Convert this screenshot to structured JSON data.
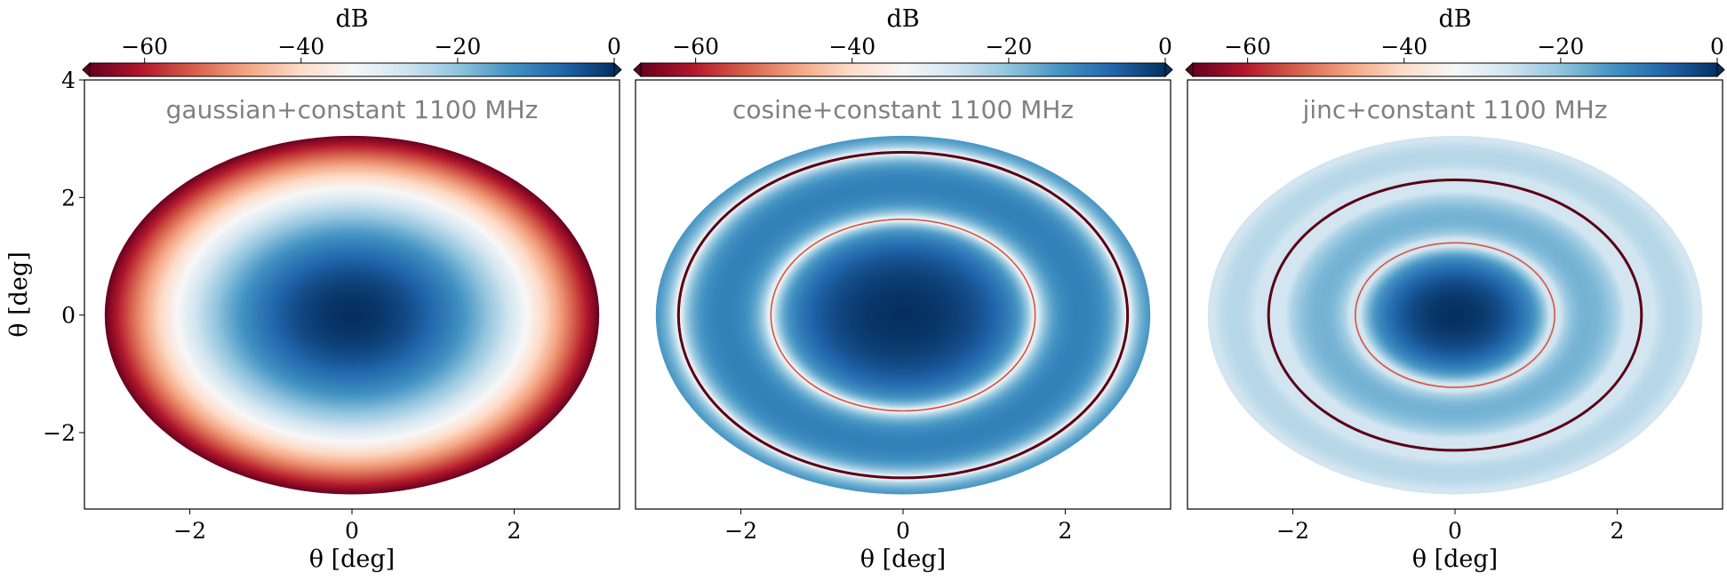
{
  "chart_data": [
    {
      "type": "heatmap",
      "title": "gaussian+constant 1100 MHz",
      "profile": "gaussian",
      "xlabel": "θ [deg]",
      "ylabel": "θ [deg]",
      "xlim": [
        -3.3,
        3.3
      ],
      "ylim": [
        -3.3,
        4
      ],
      "xticks": [
        -2,
        0,
        2
      ],
      "yticks": [
        -2,
        0,
        2,
        4
      ],
      "colorbar": {
        "label": "dB",
        "ticks": [
          -60,
          -40,
          -20,
          0
        ],
        "range": [
          -67,
          0
        ],
        "colormap": "RdBu",
        "position": "top"
      },
      "radius_deg": 3.05,
      "rings_deg": []
    },
    {
      "type": "heatmap",
      "title": "cosine+constant 1100 MHz",
      "profile": "cosine",
      "xlabel": "θ [deg]",
      "ylabel": "",
      "xlim": [
        -3.3,
        3.3
      ],
      "ylim": [
        -3.3,
        4
      ],
      "xticks": [
        -2,
        0,
        2
      ],
      "yticks": [],
      "colorbar": {
        "label": "dB",
        "ticks": [
          -60,
          -40,
          -20,
          0
        ],
        "range": [
          -67,
          0
        ],
        "colormap": "RdBu",
        "position": "top"
      },
      "radius_deg": 3.05,
      "rings_deg": [
        1.63,
        2.77
      ]
    },
    {
      "type": "heatmap",
      "title": "jinc+constant 1100 MHz",
      "profile": "jinc",
      "xlabel": "θ [deg]",
      "ylabel": "",
      "xlim": [
        -3.3,
        3.3
      ],
      "ylim": [
        -3.3,
        4
      ],
      "xticks": [
        -2,
        0,
        2
      ],
      "yticks": [],
      "colorbar": {
        "label": "dB",
        "ticks": [
          -60,
          -40,
          -20,
          0
        ],
        "range": [
          -67,
          0
        ],
        "colormap": "RdBu",
        "position": "top"
      },
      "radius_deg": 3.05,
      "rings_deg": [
        1.23,
        2.3
      ]
    }
  ]
}
